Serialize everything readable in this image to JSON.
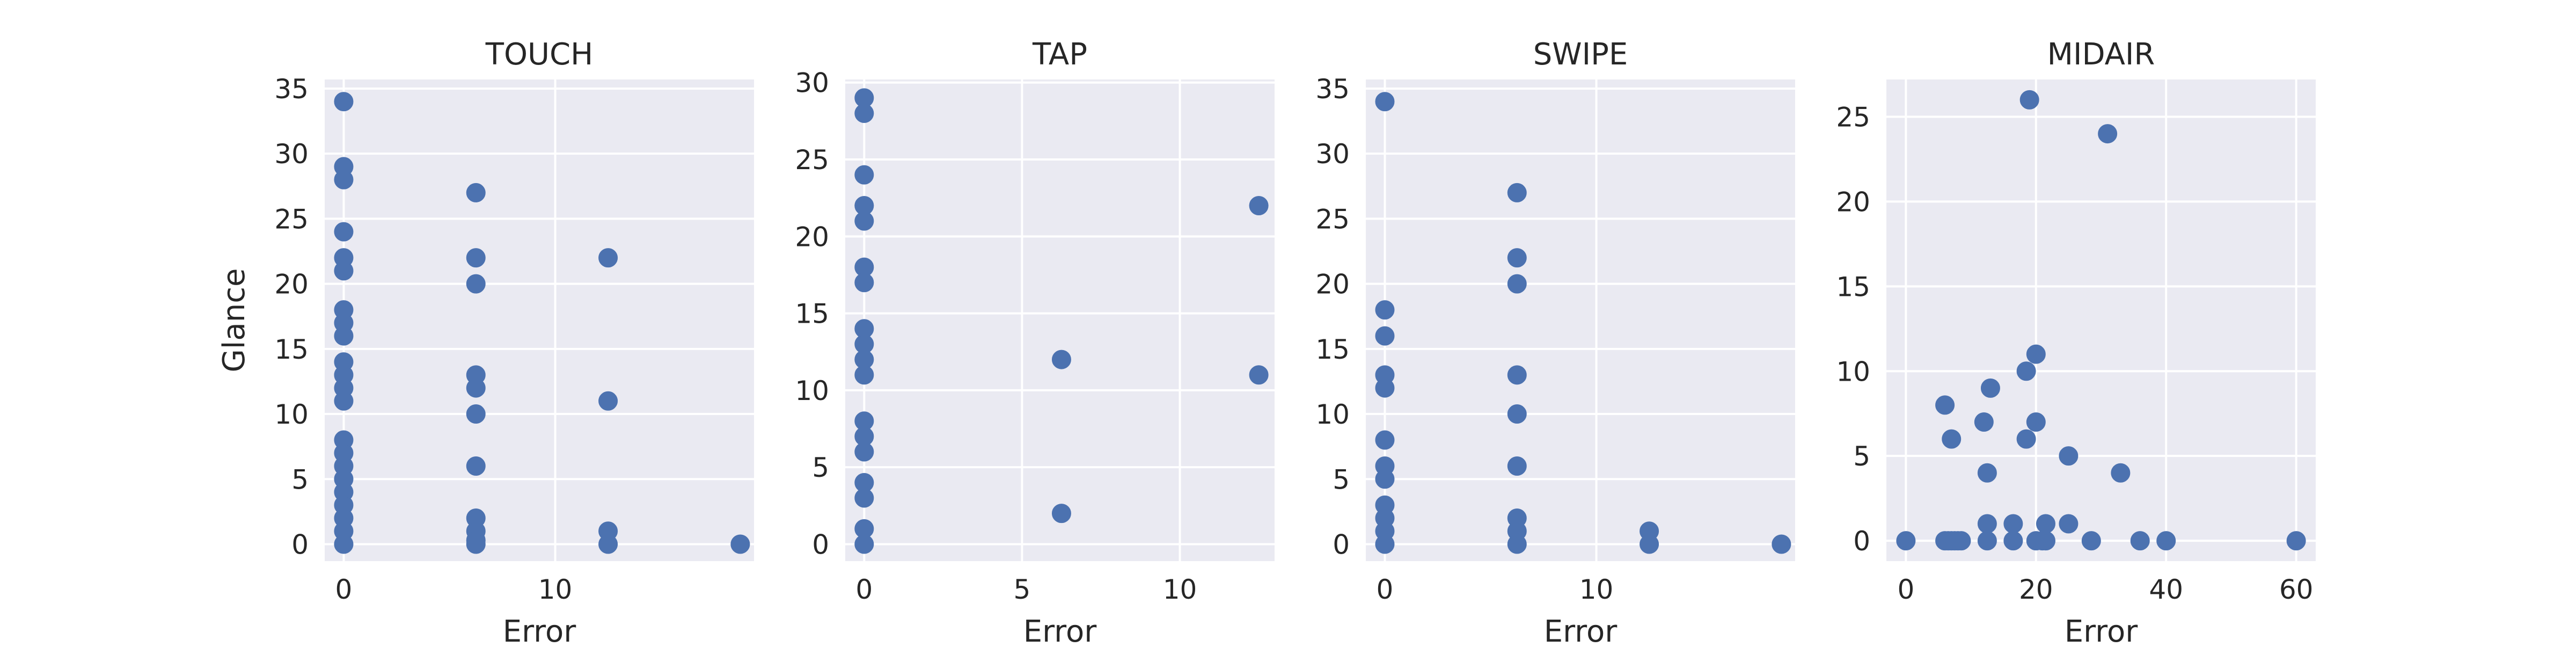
{
  "chart_data": [
    {
      "type": "scatter",
      "title": "TOUCH",
      "xlabel": "Error",
      "ylabel": "Glance",
      "xlim": [
        -0.9,
        19.4
      ],
      "ylim": [
        -1.3,
        35.7
      ],
      "xticks": [
        0,
        10
      ],
      "yticks": [
        0,
        5,
        10,
        15,
        20,
        25,
        30,
        35
      ],
      "grid": true,
      "color": "#4c72b0",
      "points": [
        [
          0,
          34
        ],
        [
          0,
          29
        ],
        [
          0,
          28
        ],
        [
          0,
          24
        ],
        [
          0,
          22
        ],
        [
          0,
          21
        ],
        [
          0,
          18
        ],
        [
          0,
          17
        ],
        [
          0,
          16
        ],
        [
          0,
          14
        ],
        [
          0,
          13
        ],
        [
          0,
          12
        ],
        [
          0,
          11
        ],
        [
          0,
          8
        ],
        [
          0,
          7
        ],
        [
          0,
          6
        ],
        [
          0,
          5
        ],
        [
          0,
          4
        ],
        [
          0,
          3
        ],
        [
          0,
          2
        ],
        [
          0,
          1
        ],
        [
          0,
          0
        ],
        [
          6.25,
          27
        ],
        [
          6.25,
          22
        ],
        [
          6.25,
          20
        ],
        [
          6.25,
          13
        ],
        [
          6.25,
          12
        ],
        [
          6.25,
          10
        ],
        [
          6.25,
          6
        ],
        [
          6.25,
          2
        ],
        [
          6.25,
          1
        ],
        [
          6.25,
          0.3
        ],
        [
          6.25,
          0
        ],
        [
          12.5,
          22
        ],
        [
          12.5,
          11
        ],
        [
          12.5,
          1
        ],
        [
          12.5,
          0
        ],
        [
          18.75,
          0
        ]
      ]
    },
    {
      "type": "scatter",
      "title": "TAP",
      "xlabel": "Error",
      "ylabel": "",
      "xlim": [
        -0.6,
        13.0
      ],
      "ylim": [
        -1.1,
        30.2
      ],
      "xticks": [
        0,
        5,
        10
      ],
      "yticks": [
        0,
        5,
        10,
        15,
        20,
        25,
        30
      ],
      "grid": true,
      "color": "#4c72b0",
      "points": [
        [
          0,
          29
        ],
        [
          0,
          28
        ],
        [
          0,
          24
        ],
        [
          0,
          22
        ],
        [
          0,
          21
        ],
        [
          0,
          18
        ],
        [
          0,
          17
        ],
        [
          0,
          14
        ],
        [
          0,
          13
        ],
        [
          0,
          12
        ],
        [
          0,
          11
        ],
        [
          0,
          8
        ],
        [
          0,
          7
        ],
        [
          0,
          6
        ],
        [
          0,
          4
        ],
        [
          0,
          3
        ],
        [
          0,
          1
        ],
        [
          0,
          0
        ],
        [
          6.25,
          12
        ],
        [
          6.25,
          2
        ],
        [
          12.5,
          22
        ],
        [
          12.5,
          11
        ]
      ]
    },
    {
      "type": "scatter",
      "title": "SWIPE",
      "xlabel": "Error",
      "ylabel": "",
      "xlim": [
        -0.9,
        19.4
      ],
      "ylim": [
        -1.3,
        35.7
      ],
      "xticks": [
        0,
        10
      ],
      "yticks": [
        0,
        5,
        10,
        15,
        20,
        25,
        30,
        35
      ],
      "grid": true,
      "color": "#4c72b0",
      "points": [
        [
          0,
          34
        ],
        [
          0,
          18
        ],
        [
          0,
          16
        ],
        [
          0,
          13
        ],
        [
          0,
          12
        ],
        [
          0,
          8
        ],
        [
          0,
          6
        ],
        [
          0,
          5
        ],
        [
          0,
          3
        ],
        [
          0,
          2
        ],
        [
          0,
          1
        ],
        [
          0,
          0
        ],
        [
          6.25,
          27
        ],
        [
          6.25,
          22
        ],
        [
          6.25,
          20
        ],
        [
          6.25,
          13
        ],
        [
          6.25,
          10
        ],
        [
          6.25,
          6
        ],
        [
          6.25,
          2
        ],
        [
          6.25,
          1
        ],
        [
          6.25,
          0
        ],
        [
          12.5,
          1
        ],
        [
          12.5,
          0
        ],
        [
          18.75,
          0
        ]
      ]
    },
    {
      "type": "scatter",
      "title": "MIDAIR",
      "xlabel": "Error",
      "ylabel": "",
      "xlim": [
        -3,
        63
      ],
      "ylim": [
        -1.2,
        27.2
      ],
      "xticks": [
        0,
        20,
        40,
        60
      ],
      "yticks": [
        0,
        5,
        10,
        15,
        20,
        25
      ],
      "grid": true,
      "color": "#4c72b0",
      "points": [
        [
          0,
          0
        ],
        [
          6,
          0
        ],
        [
          6.5,
          0
        ],
        [
          7,
          0
        ],
        [
          7.5,
          0
        ],
        [
          8,
          0
        ],
        [
          8.5,
          0
        ],
        [
          6,
          8
        ],
        [
          7,
          6
        ],
        [
          12,
          7
        ],
        [
          12.5,
          4
        ],
        [
          12.5,
          1
        ],
        [
          12.5,
          0
        ],
        [
          13,
          9
        ],
        [
          16.5,
          1
        ],
        [
          16.5,
          0
        ],
        [
          18.5,
          6
        ],
        [
          18.5,
          10
        ],
        [
          19,
          26
        ],
        [
          20,
          11
        ],
        [
          20,
          7
        ],
        [
          20,
          0
        ],
        [
          21,
          0
        ],
        [
          21.5,
          0
        ],
        [
          21.5,
          1
        ],
        [
          25,
          5
        ],
        [
          25,
          1
        ],
        [
          28.5,
          0
        ],
        [
          31,
          24
        ],
        [
          33,
          4
        ],
        [
          36,
          0
        ],
        [
          40,
          0
        ],
        [
          60,
          0
        ]
      ]
    }
  ]
}
